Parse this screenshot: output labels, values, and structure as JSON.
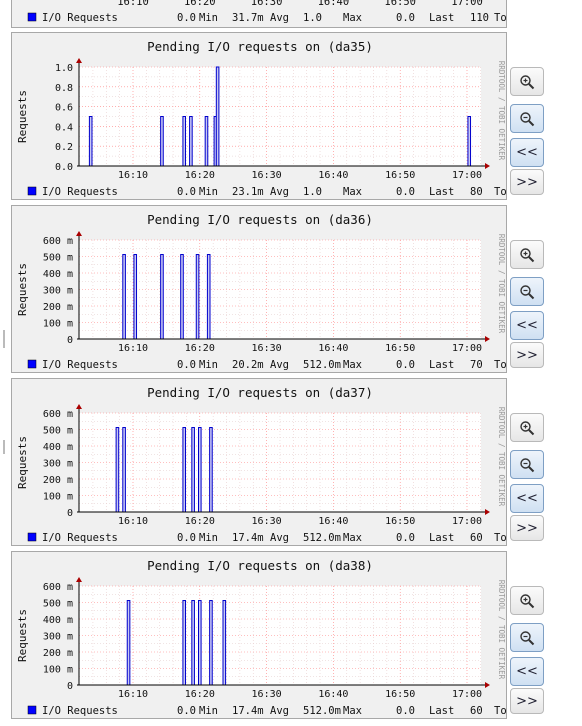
{
  "ylabel": "Requests",
  "watermark": "RRDTOOL / TOBI OETIKER",
  "legend_series": "I/O Requests",
  "legend_color": "#0000ff",
  "stat_labels": {
    "min": "Min",
    "avg": "Avg",
    "max": "Max",
    "last": "Last"
  },
  "x_ticks": [
    "16:10",
    "16:20",
    "16:30",
    "16:40",
    "16:50",
    "17:00"
  ],
  "buttons": {
    "zoom_in": "zoom-in",
    "zoom_out": "zoom-out",
    "prev": "<<",
    "next": ">>"
  },
  "top_partial": {
    "x_ticks": [
      "16:10",
      "16:20",
      "16:30",
      "16:40",
      "16:50",
      "17:00"
    ],
    "legend": {
      "series": "I/O Requests",
      "min": "0.0",
      "avg": "31.7m",
      "max": "1.0",
      "last": "0.0",
      "last_tail": "110",
      "clip": "To"
    }
  },
  "charts": [
    {
      "title": "Pending I/O requests on (da35)",
      "legend": {
        "min": "0.0",
        "avg": "23.1m",
        "max": "1.0",
        "last": "0.0",
        "last_tail": "80",
        "clip": "To"
      },
      "chart_data": {
        "type": "bar",
        "x": [
          "16:03:40",
          "16:14:20",
          "16:17:40",
          "16:18:40",
          "16:21:00",
          "16:22:20",
          "16:22:40",
          "17:00:20"
        ],
        "values": [
          0.5,
          0.5,
          0.5,
          0.5,
          0.5,
          0.5,
          1.0,
          0.5
        ],
        "ylim": [
          0,
          1.0
        ],
        "y_ticks": [
          "0.0",
          "0.2",
          "0.4",
          "0.6",
          "0.8",
          "1.0"
        ],
        "y_tick_values": [
          0,
          0.2,
          0.4,
          0.6,
          0.8,
          1.0
        ]
      }
    },
    {
      "title": "Pending I/O requests on (da36)",
      "legend": {
        "min": "0.0",
        "avg": "20.2m",
        "max": "512.0m",
        "last": "0.0",
        "last_tail": "70",
        "clip": "To"
      },
      "chart_data": {
        "type": "bar",
        "x": [
          "16:08:40",
          "16:10:20",
          "16:14:20",
          "16:17:20",
          "16:19:40",
          "16:21:20"
        ],
        "values": [
          0.512,
          0.512,
          0.512,
          0.512,
          0.512,
          0.512
        ],
        "ylim": [
          0,
          0.6
        ],
        "y_ticks": [
          "0",
          "100 m",
          "200 m",
          "300 m",
          "400 m",
          "500 m",
          "600 m"
        ],
        "y_tick_values": [
          0,
          0.1,
          0.2,
          0.3,
          0.4,
          0.5,
          0.6
        ]
      }
    },
    {
      "title": "Pending I/O requests on (da37)",
      "legend": {
        "min": "0.0",
        "avg": "17.4m",
        "max": "512.0m",
        "last": "0.0",
        "last_tail": "60",
        "clip": "To"
      },
      "chart_data": {
        "type": "bar",
        "x": [
          "16:07:40",
          "16:08:40",
          "16:17:40",
          "16:19:00",
          "16:20:00",
          "16:21:40"
        ],
        "values": [
          0.512,
          0.512,
          0.512,
          0.512,
          0.512,
          0.512
        ],
        "ylim": [
          0,
          0.6
        ],
        "y_ticks": [
          "0",
          "100 m",
          "200 m",
          "300 m",
          "400 m",
          "500 m",
          "600 m"
        ],
        "y_tick_values": [
          0,
          0.1,
          0.2,
          0.3,
          0.4,
          0.5,
          0.6
        ]
      }
    },
    {
      "title": "Pending I/O requests on (da38)",
      "legend": {
        "min": "0.0",
        "avg": "17.4m",
        "max": "512.0m",
        "last": "0.0",
        "last_tail": "60",
        "clip": "To"
      },
      "chart_data": {
        "type": "bar",
        "x": [
          "16:09:20",
          "16:17:40",
          "16:19:00",
          "16:20:00",
          "16:21:40",
          "16:23:40"
        ],
        "values": [
          0.512,
          0.512,
          0.512,
          0.512,
          0.512,
          0.512
        ],
        "ylim": [
          0,
          0.6
        ],
        "y_ticks": [
          "0",
          "100 m",
          "200 m",
          "300 m",
          "400 m",
          "500 m",
          "600 m"
        ],
        "y_tick_values": [
          0,
          0.1,
          0.2,
          0.3,
          0.4,
          0.5,
          0.6
        ]
      }
    }
  ]
}
